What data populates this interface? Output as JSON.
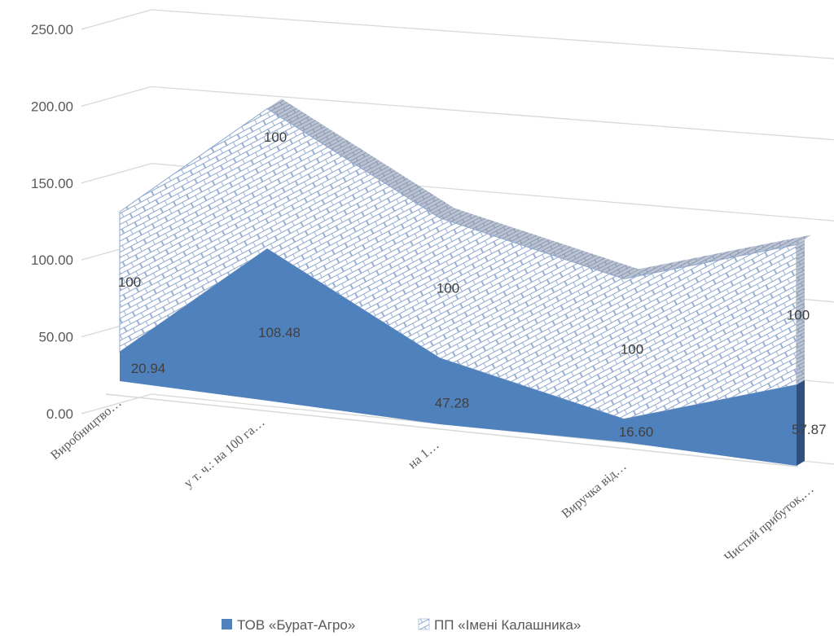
{
  "chart_data": {
    "type": "area",
    "categories": [
      "Виробництво…",
      "у т. ч.: на 100 га…",
      "на 1…",
      "Виручка від…",
      "Чистий прибуток,…"
    ],
    "series": [
      {
        "name": "ТОВ «Бурат-Агро»",
        "values": [
          20.94,
          108.48,
          47.28,
          16.6,
          57.87
        ],
        "labels": [
          "20.94",
          "108.48",
          "47.28",
          "16.60",
          "57.87"
        ],
        "color": "#4f81bd"
      },
      {
        "name": "ПП «Імені Калашника»",
        "values": [
          100,
          100,
          100,
          100,
          100
        ],
        "labels": [
          "100",
          "100",
          "100",
          "100",
          "100"
        ],
        "color": "#c9d4e6"
      }
    ],
    "yticks": [
      "0.00",
      "50.00",
      "100.00",
      "150.00",
      "200.00",
      "250.00"
    ],
    "ylim": [
      0,
      250
    ],
    "stacked": true,
    "grid": true,
    "legend": "bottom"
  }
}
